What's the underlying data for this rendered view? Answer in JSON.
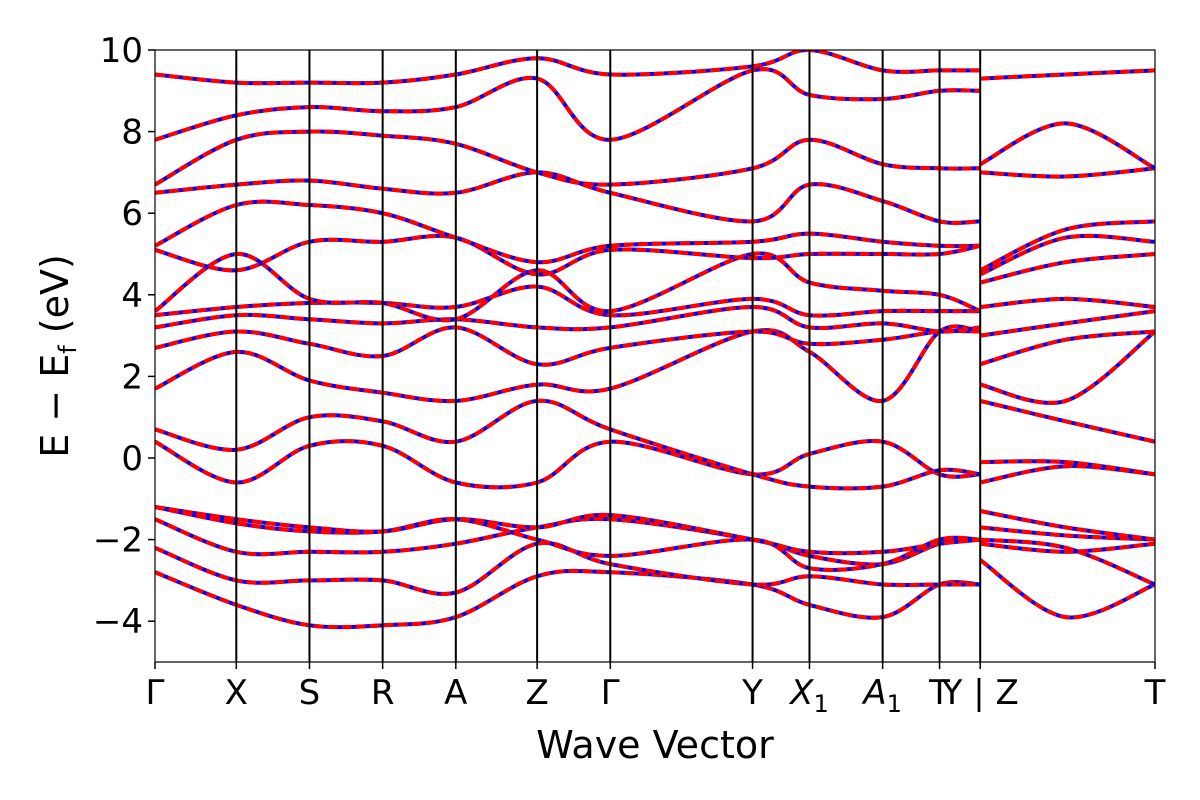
{
  "chart_data": {
    "type": "line",
    "xlabel": "Wave Vector",
    "ylabel_main": "E − E",
    "ylabel_sub": "f",
    "ylabel_unit": " (eV)",
    "ylim": [
      -5,
      10
    ],
    "y_ticks": [
      -4,
      -2,
      0,
      2,
      4,
      6,
      8,
      10
    ],
    "y_tick_labels": [
      "−4",
      "−2",
      "0",
      "2",
      "4",
      "6",
      "8",
      "10"
    ],
    "x_range": [
      0,
      12.3
    ],
    "k_points": [
      {
        "x": 0.0,
        "label": "Γ"
      },
      {
        "x": 1.0,
        "label": "X"
      },
      {
        "x": 1.9,
        "label": "S"
      },
      {
        "x": 2.8,
        "label": "R"
      },
      {
        "x": 3.7,
        "label": "A"
      },
      {
        "x": 4.7,
        "label": "Z"
      },
      {
        "x": 5.6,
        "label": "Γ"
      },
      {
        "x": 7.35,
        "label": "Y"
      },
      {
        "x": 8.05,
        "label": "X",
        "sub": "1"
      },
      {
        "x": 8.95,
        "label": "A",
        "sub": "1"
      },
      {
        "x": 9.65,
        "label": "T"
      },
      {
        "x": 10.15,
        "label": "Y | Z",
        "break": true
      },
      {
        "x": 12.3,
        "label": "T"
      }
    ],
    "grid": false,
    "series_styles": [
      {
        "color": "#0000ff",
        "dash": "none"
      },
      {
        "color": "#ff0000",
        "dash": "dashed"
      }
    ],
    "bands": [
      {
        "x": [
          0,
          1,
          1.9,
          2.8,
          3.7,
          4.7,
          5.6,
          7.35,
          8.05,
          8.95,
          9.65,
          10.15
        ],
        "y": [
          -2.8,
          -3.6,
          -4.1,
          -4.1,
          -3.9,
          -2.9,
          -2.8,
          -3.1,
          -3.6,
          -3.9,
          -3.1,
          -3.1
        ]
      },
      {
        "x": [
          10.15,
          11.2,
          12.3
        ],
        "y": [
          -2.5,
          -3.9,
          -3.1
        ]
      },
      {
        "x": [
          0,
          1,
          1.9,
          2.8,
          3.7,
          4.7,
          5.6,
          7.35,
          8.05,
          8.95,
          9.65,
          10.15
        ],
        "y": [
          -2.2,
          -3.0,
          -3.0,
          -3.0,
          -3.3,
          -2.1,
          -2.6,
          -3.1,
          -2.9,
          -3.1,
          -3.1,
          -3.1
        ]
      },
      {
        "x": [
          10.15,
          11.2,
          12.3
        ],
        "y": [
          -2.0,
          -2.2,
          -3.1
        ]
      },
      {
        "x": [
          0,
          1,
          1.9,
          2.8,
          3.7,
          4.7,
          5.6,
          7.35,
          8.05,
          8.95,
          9.65,
          10.15
        ],
        "y": [
          -1.5,
          -2.3,
          -2.3,
          -2.3,
          -2.1,
          -1.7,
          -1.5,
          -2.0,
          -2.4,
          -2.6,
          -2.1,
          -2.0
        ]
      },
      {
        "x": [
          10.15,
          11.2,
          12.3
        ],
        "y": [
          -2.1,
          -2.3,
          -2.1
        ]
      },
      {
        "x": [
          0,
          1,
          1.9,
          2.8,
          3.7,
          4.7,
          5.6,
          7.35,
          8.05,
          8.95,
          9.65,
          10.15
        ],
        "y": [
          -1.2,
          -1.6,
          -1.8,
          -1.8,
          -1.5,
          -2.0,
          -2.4,
          -2.0,
          -2.7,
          -2.6,
          -2.0,
          -2.0
        ]
      },
      {
        "x": [
          10.15,
          11.2,
          12.3
        ],
        "y": [
          -1.7,
          -1.9,
          -2.0
        ]
      },
      {
        "x": [
          0,
          1,
          1.9,
          2.8,
          3.7,
          4.7,
          5.6,
          7.35,
          8.05,
          8.95,
          9.65,
          10.15
        ],
        "y": [
          -1.2,
          -1.5,
          -1.7,
          -1.8,
          -1.5,
          -1.7,
          -1.4,
          -2.0,
          -2.3,
          -2.3,
          -2.1,
          -2.0
        ]
      },
      {
        "x": [
          10.15,
          11.2,
          12.3
        ],
        "y": [
          -1.3,
          -1.7,
          -2.0
        ]
      },
      {
        "x": [
          0,
          1,
          1.9,
          2.8,
          3.7,
          4.7,
          5.6,
          7.35,
          8.05,
          8.95,
          9.65,
          10.15
        ],
        "y": [
          0.4,
          -0.6,
          0.3,
          0.3,
          -0.6,
          -0.6,
          0.4,
          -0.4,
          0.1,
          0.4,
          -0.4,
          -0.4
        ]
      },
      {
        "x": [
          10.15,
          11.2,
          12.3
        ],
        "y": [
          -0.6,
          -0.2,
          -0.4
        ]
      },
      {
        "x": [
          0,
          1,
          1.9,
          2.8,
          3.7,
          4.7,
          5.6,
          7.35,
          8.05,
          8.95,
          9.65,
          10.15
        ],
        "y": [
          0.7,
          0.2,
          1.0,
          0.9,
          0.4,
          1.4,
          0.7,
          -0.4,
          -0.7,
          -0.7,
          -0.3,
          -0.4
        ]
      },
      {
        "x": [
          10.15,
          11.2,
          12.3
        ],
        "y": [
          -0.1,
          -0.1,
          -0.4
        ]
      },
      {
        "x": [
          0,
          1,
          1.9,
          2.8,
          3.7,
          4.7,
          5.6,
          7.35,
          8.05,
          8.95,
          9.65,
          10.15
        ],
        "y": [
          1.7,
          2.6,
          1.9,
          1.6,
          1.4,
          1.8,
          1.7,
          3.1,
          2.6,
          1.4,
          3.1,
          3.1
        ]
      },
      {
        "x": [
          10.15,
          11.2,
          12.3
        ],
        "y": [
          1.4,
          0.9,
          0.4
        ]
      },
      {
        "x": [
          0,
          1,
          1.9,
          2.8,
          3.7,
          4.7,
          5.6,
          7.35,
          8.05,
          8.95,
          9.65,
          10.15
        ],
        "y": [
          2.7,
          3.1,
          2.8,
          2.5,
          3.2,
          2.3,
          2.7,
          3.1,
          2.8,
          2.9,
          3.1,
          3.1
        ]
      },
      {
        "x": [
          10.15,
          11.2,
          12.3
        ],
        "y": [
          1.8,
          1.4,
          3.1
        ]
      },
      {
        "x": [
          0,
          1,
          1.9,
          2.8,
          3.7,
          4.7,
          5.6,
          7.35,
          8.05,
          8.95,
          9.65,
          10.15
        ],
        "y": [
          3.2,
          3.5,
          3.4,
          3.3,
          3.4,
          3.2,
          3.2,
          3.7,
          3.2,
          3.3,
          3.1,
          3.2
        ]
      },
      {
        "x": [
          10.15,
          11.2,
          12.3
        ],
        "y": [
          2.3,
          2.9,
          3.1
        ]
      },
      {
        "x": [
          0,
          1,
          1.9,
          2.8,
          3.7,
          4.7,
          5.6,
          7.35,
          8.05,
          8.95,
          9.65,
          10.15
        ],
        "y": [
          3.5,
          3.7,
          3.8,
          3.8,
          3.7,
          4.2,
          3.5,
          3.9,
          3.5,
          3.6,
          3.6,
          3.6
        ]
      },
      {
        "x": [
          10.15,
          11.2,
          12.3
        ],
        "y": [
          3.0,
          3.3,
          3.6
        ]
      },
      {
        "x": [
          0,
          1,
          1.9,
          2.8,
          3.7,
          4.7,
          5.6,
          7.35,
          8.05,
          8.95,
          9.65,
          10.15
        ],
        "y": [
          3.6,
          5.0,
          3.9,
          3.8,
          3.4,
          4.6,
          3.6,
          5.0,
          4.3,
          4.1,
          4.0,
          3.6
        ]
      },
      {
        "x": [
          10.15,
          11.2,
          12.3
        ],
        "y": [
          3.7,
          3.9,
          3.7
        ]
      },
      {
        "x": [
          0,
          1,
          1.9,
          2.8,
          3.7,
          4.7,
          5.6,
          7.35,
          8.05,
          8.95,
          9.65,
          10.15
        ],
        "y": [
          5.1,
          4.6,
          5.3,
          5.3,
          5.4,
          4.5,
          5.1,
          4.9,
          5.0,
          5.0,
          5.0,
          5.2
        ]
      },
      {
        "x": [
          10.15,
          11.2,
          12.3
        ],
        "y": [
          4.3,
          4.8,
          5.0
        ]
      },
      {
        "x": [
          0,
          1,
          1.9,
          2.8,
          3.7,
          4.7,
          5.6,
          7.35,
          8.05,
          8.95,
          9.65,
          10.15
        ],
        "y": [
          5.2,
          6.2,
          6.2,
          6.0,
          5.4,
          4.8,
          5.2,
          5.3,
          5.5,
          5.3,
          5.2,
          5.2
        ]
      },
      {
        "x": [
          10.15,
          11.2,
          12.3
        ],
        "y": [
          4.5,
          5.4,
          5.3
        ]
      },
      {
        "x": [
          0,
          1,
          1.9,
          2.8,
          3.7,
          4.7,
          5.6,
          7.35,
          8.05,
          8.95,
          9.65,
          10.15
        ],
        "y": [
          6.5,
          6.7,
          6.8,
          6.6,
          6.5,
          7.0,
          6.5,
          5.8,
          6.7,
          6.3,
          5.8,
          5.8
        ]
      },
      {
        "x": [
          10.15,
          11.2,
          12.3
        ],
        "y": [
          4.6,
          5.6,
          5.8
        ]
      },
      {
        "x": [
          0,
          1,
          1.9,
          2.8,
          3.7,
          4.7,
          5.6,
          7.35,
          8.05,
          8.95,
          9.65,
          10.15
        ],
        "y": [
          6.7,
          7.8,
          8.0,
          7.9,
          7.7,
          7.0,
          6.7,
          7.1,
          7.8,
          7.2,
          7.1,
          7.1
        ]
      },
      {
        "x": [
          10.15,
          11.2,
          12.3
        ],
        "y": [
          7.0,
          6.9,
          7.1
        ]
      },
      {
        "x": [
          0,
          1,
          1.9,
          2.8,
          3.7,
          4.7,
          5.6,
          7.35,
          8.05,
          8.95,
          9.65,
          10.15
        ],
        "y": [
          7.8,
          8.4,
          8.6,
          8.5,
          8.6,
          9.3,
          7.8,
          9.5,
          8.9,
          8.8,
          9.0,
          9.0
        ]
      },
      {
        "x": [
          10.15,
          11.2,
          12.3
        ],
        "y": [
          7.2,
          8.2,
          7.1
        ]
      },
      {
        "x": [
          0,
          1,
          1.9,
          2.8,
          3.7,
          4.7,
          5.6,
          7.35,
          8.05,
          8.95,
          9.65,
          10.15
        ],
        "y": [
          9.4,
          9.2,
          9.2,
          9.2,
          9.4,
          9.8,
          9.4,
          9.6,
          10.0,
          9.5,
          9.5,
          9.5
        ]
      },
      {
        "x": [
          10.15,
          11.2,
          12.3
        ],
        "y": [
          9.3,
          9.4,
          9.5
        ]
      }
    ]
  }
}
